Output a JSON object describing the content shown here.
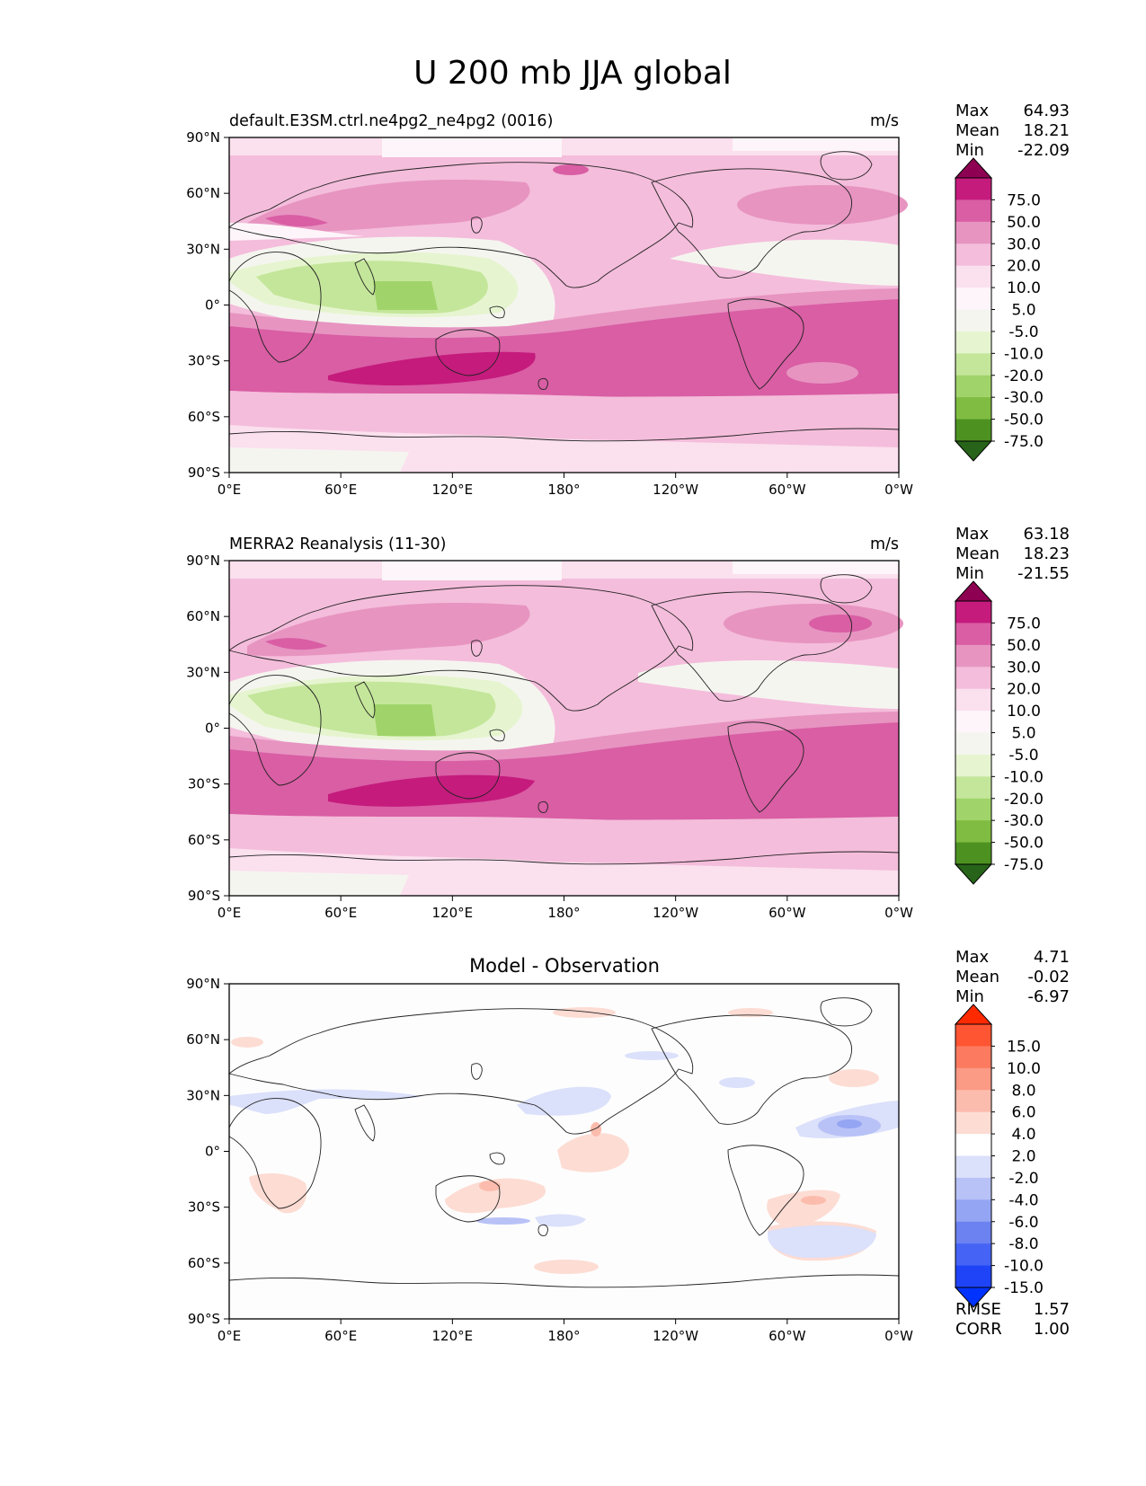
{
  "title": "U 200 mb JJA global",
  "lat_ticks": [
    "90°N",
    "60°N",
    "30°N",
    "0°",
    "30°S",
    "60°S",
    "90°S"
  ],
  "lon_ticks": [
    "0°E",
    "60°E",
    "120°E",
    "180°",
    "120°W",
    "60°W",
    "0°W"
  ],
  "stat_labels": {
    "max": "Max",
    "mean": "Mean",
    "min": "Min",
    "rmse": "RMSE",
    "corr": "CORR"
  },
  "panels": [
    {
      "id": "model",
      "left_title": "default.E3SM.ctrl.ne4pg2_ne4pg2 (0016)",
      "center_title": "",
      "units": "m/s",
      "stats": {
        "max": "64.93",
        "mean": "18.21",
        "min": "-22.09"
      }
    },
    {
      "id": "obs",
      "left_title": "MERRA2 Reanalysis (11-30)",
      "center_title": "",
      "units": "m/s",
      "stats": {
        "max": "63.18",
        "mean": "18.23",
        "min": "-21.55"
      }
    },
    {
      "id": "diff",
      "left_title": "",
      "center_title": "Model - Observation",
      "units": "",
      "stats": {
        "max": "4.71",
        "mean": "-0.02",
        "min": "-6.97"
      },
      "metrics": {
        "rmse": "1.57",
        "corr": "1.00"
      }
    }
  ],
  "colorbars": {
    "field": {
      "labels": [
        "75.0",
        "50.0",
        "30.0",
        "20.0",
        "10.0",
        "5.0",
        "-5.0",
        "-10.0",
        "-20.0",
        "-30.0",
        "-50.0",
        "-75.0"
      ],
      "colors": [
        "#8e0152",
        "#c51b7d",
        "#d95ea4",
        "#e794c1",
        "#f4bddb",
        "#fbe0ee",
        "#fdf5f9",
        "#f5f5f0",
        "#e6f5d0",
        "#c4e69a",
        "#a0d46a",
        "#7fbc41",
        "#4d9221",
        "#276419"
      ]
    },
    "diff": {
      "labels": [
        "15.0",
        "10.0",
        "8.0",
        "6.0",
        "4.0",
        "2.0",
        "-2.0",
        "-4.0",
        "-6.0",
        "-8.0",
        "-10.0",
        "-15.0"
      ],
      "colors": [
        "#ff2a00",
        "#ff5533",
        "#fc7a60",
        "#fb9a85",
        "#fcbcad",
        "#fddcd3",
        "#ffffff",
        "#dbe0fb",
        "#b8c2f7",
        "#94a5f3",
        "#6b82f0",
        "#4563f5",
        "#1f44f7",
        "#0033ff"
      ]
    }
  }
}
